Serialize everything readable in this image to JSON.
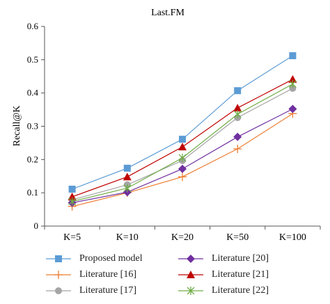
{
  "chart_data": {
    "type": "line",
    "title": "Last.FM",
    "xlabel": "",
    "ylabel": "Recall@K",
    "categories": [
      "K=5",
      "K=10",
      "K=20",
      "K=50",
      "K=100"
    ],
    "ylim": [
      0,
      0.6
    ],
    "yticks": [
      "0",
      "0.1",
      "0.2",
      "0.3",
      "0.4",
      "0.5",
      "0.6"
    ],
    "grid": false,
    "legend_position": "bottom",
    "series": [
      {
        "name": "Proposed model",
        "color": "#5b9bd5",
        "marker": "square",
        "values": [
          0.111,
          0.174,
          0.261,
          0.407,
          0.512
        ]
      },
      {
        "name": "Literature [16]",
        "color": "#ed7d31",
        "marker": "plus",
        "values": [
          0.059,
          0.1,
          0.148,
          0.232,
          0.338
        ]
      },
      {
        "name": "Literature [17]",
        "color": "#a5a5a5",
        "marker": "circle",
        "values": [
          0.079,
          0.124,
          0.197,
          0.326,
          0.414
        ]
      },
      {
        "name": "Literature [20]",
        "color": "#7030a0",
        "marker": "diamond",
        "values": [
          0.07,
          0.102,
          0.172,
          0.268,
          0.352
        ]
      },
      {
        "name": "Literature [21]",
        "color": "#c00000",
        "marker": "triangle",
        "values": [
          0.088,
          0.148,
          0.238,
          0.355,
          0.441
        ]
      },
      {
        "name": "Literature [22]",
        "color": "#70ad47",
        "marker": "star",
        "values": [
          0.074,
          0.114,
          0.205,
          0.336,
          0.427
        ]
      }
    ]
  }
}
